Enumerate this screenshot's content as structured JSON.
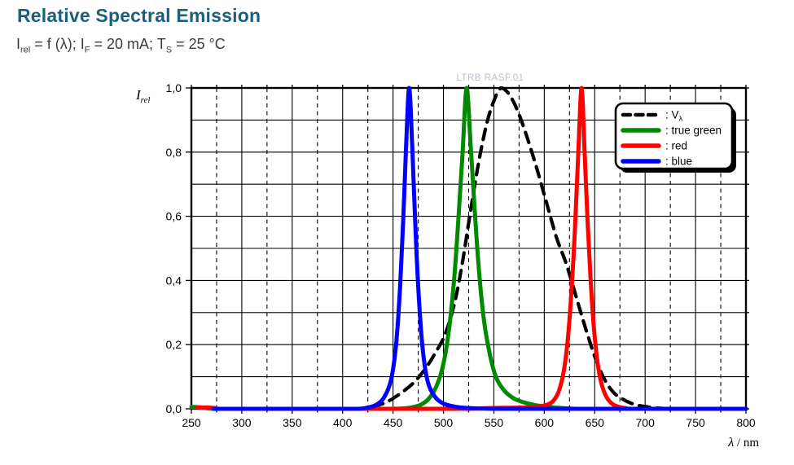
{
  "page": {
    "title": "Relative Spectral Emission",
    "title_color": "#1a5f7d",
    "subtitle_parts": {
      "p0": "I",
      "s0": "rel",
      "p1": " = f (λ); I",
      "s1": "F",
      "p2": " = 20 mA; T",
      "s2": "S",
      "p3": " = 25 °C"
    }
  },
  "watermark": "LTRB RASF.01",
  "chart_data": {
    "type": "line",
    "title": "Relative Spectral Emission",
    "condition": "Irel = f (λ); IF = 20 mA; TS = 25 °C",
    "xlabel_symbol": "λ",
    "xlabel_unit": " / nm",
    "ylabel_main": "I",
    "ylabel_sub": "rel",
    "xlim": [
      250,
      800
    ],
    "ylim": [
      0,
      1
    ],
    "grid": "on",
    "x_tick_labels": [
      "250",
      "300",
      "350",
      "400",
      "450",
      "500",
      "550",
      "600",
      "650",
      "700",
      "750",
      "800"
    ],
    "x_tick_values": [
      250,
      300,
      350,
      400,
      450,
      500,
      550,
      600,
      650,
      700,
      750,
      800
    ],
    "y_tick_labels": [
      "0,0",
      "0,2",
      "0,4",
      "0,6",
      "0,8",
      "1,0"
    ],
    "y_tick_values": [
      0,
      0.2,
      0.4,
      0.6,
      0.8,
      1.0
    ],
    "x_solid_grid": [
      300,
      350,
      400,
      450,
      500,
      550,
      600,
      650,
      700,
      750
    ],
    "x_dashed_grid": [
      275,
      325,
      375,
      425,
      475,
      525,
      575,
      625,
      675,
      725,
      775
    ],
    "y_grid": [
      0.1,
      0.2,
      0.3,
      0.4,
      0.5,
      0.6,
      0.7,
      0.8,
      0.9
    ],
    "x_minor_step": 25,
    "y_minor_step": 0.1,
    "legend": {
      "position": "top-right",
      "items": [
        {
          "label_main": ": V",
          "label_sub": "λ",
          "color": "#000000",
          "dash": "9 6.5"
        },
        {
          "label": ": true green",
          "color": "#008a00",
          "dash": "none"
        },
        {
          "label": ": red",
          "color": "#ff0000",
          "dash": "none"
        },
        {
          "label": ": blue",
          "color": "#0000ff",
          "dash": "none"
        }
      ]
    },
    "series": [
      {
        "name": "V_lambda",
        "color": "#000000",
        "style": "dashed",
        "width": 4.2,
        "points": [
          [
            430,
            0.006
          ],
          [
            443,
            0.02
          ],
          [
            456,
            0.045
          ],
          [
            470,
            0.08
          ],
          [
            482,
            0.125
          ],
          [
            493,
            0.18
          ],
          [
            502,
            0.235
          ],
          [
            511,
            0.33
          ],
          [
            519,
            0.46
          ],
          [
            527,
            0.62
          ],
          [
            535,
            0.77
          ],
          [
            543,
            0.89
          ],
          [
            550,
            0.96
          ],
          [
            557,
            1.0
          ],
          [
            564,
            0.985
          ],
          [
            572,
            0.94
          ],
          [
            581,
            0.865
          ],
          [
            592,
            0.755
          ],
          [
            602,
            0.645
          ],
          [
            612,
            0.535
          ],
          [
            622,
            0.45
          ],
          [
            632,
            0.345
          ],
          [
            642,
            0.24
          ],
          [
            651,
            0.155
          ],
          [
            660,
            0.09
          ],
          [
            669,
            0.05
          ],
          [
            679,
            0.028
          ],
          [
            690,
            0.013
          ],
          [
            702,
            0.006
          ],
          [
            714,
            0.002
          ],
          [
            726,
            0
          ]
        ]
      },
      {
        "name": "true green",
        "color": "#008a00",
        "style": "solid",
        "width": 5,
        "points": [
          [
            250,
            0.006
          ],
          [
            257,
            0.005
          ],
          [
            262,
            0.003
          ],
          [
            268,
            0.001
          ],
          [
            275,
            0
          ],
          [
            320,
            0
          ],
          [
            380,
            0
          ],
          [
            440,
            0
          ],
          [
            458,
            0.001
          ],
          [
            468,
            0.004
          ],
          [
            477,
            0.012
          ],
          [
            485,
            0.03
          ],
          [
            493,
            0.07
          ],
          [
            500,
            0.14
          ],
          [
            506,
            0.26
          ],
          [
            511,
            0.42
          ],
          [
            515,
            0.6
          ],
          [
            519,
            0.8
          ],
          [
            523,
            1.0
          ],
          [
            527,
            0.82
          ],
          [
            531,
            0.62
          ],
          [
            535,
            0.44
          ],
          [
            540,
            0.28
          ],
          [
            546,
            0.17
          ],
          [
            552,
            0.1
          ],
          [
            560,
            0.058
          ],
          [
            570,
            0.032
          ],
          [
            582,
            0.018
          ],
          [
            594,
            0.01
          ],
          [
            605,
            0.006
          ],
          [
            614,
            0.003
          ],
          [
            624,
            0.001
          ],
          [
            636,
            0
          ],
          [
            700,
            0
          ],
          [
            800,
            0
          ]
        ]
      },
      {
        "name": "red",
        "color": "#ff0000",
        "style": "solid",
        "width": 5,
        "points": [
          [
            256,
            0.004
          ],
          [
            266,
            0.004
          ],
          [
            274,
            0.002
          ],
          [
            282,
            0
          ],
          [
            350,
            0
          ],
          [
            450,
            0
          ],
          [
            520,
            0
          ],
          [
            542,
            0.002
          ],
          [
            560,
            0.003
          ],
          [
            578,
            0.004
          ],
          [
            592,
            0.006
          ],
          [
            602,
            0.012
          ],
          [
            609,
            0.025
          ],
          [
            615,
            0.06
          ],
          [
            620,
            0.13
          ],
          [
            624,
            0.24
          ],
          [
            628,
            0.42
          ],
          [
            631,
            0.6
          ],
          [
            634,
            0.82
          ],
          [
            637,
            1.0
          ],
          [
            640,
            0.8
          ],
          [
            643,
            0.58
          ],
          [
            646,
            0.4
          ],
          [
            649,
            0.26
          ],
          [
            653,
            0.14
          ],
          [
            657,
            0.075
          ],
          [
            662,
            0.035
          ],
          [
            668,
            0.014
          ],
          [
            674,
            0.006
          ],
          [
            681,
            0.002
          ],
          [
            690,
            0
          ],
          [
            740,
            0
          ],
          [
            800,
            0
          ]
        ]
      },
      {
        "name": "blue",
        "color": "#0000ff",
        "style": "solid",
        "width": 5,
        "points": [
          [
            272,
            0
          ],
          [
            300,
            0
          ],
          [
            340,
            0
          ],
          [
            380,
            0
          ],
          [
            415,
            0
          ],
          [
            425,
            0.004
          ],
          [
            433,
            0.012
          ],
          [
            441,
            0.035
          ],
          [
            448,
            0.09
          ],
          [
            453,
            0.2
          ],
          [
            457,
            0.38
          ],
          [
            460,
            0.58
          ],
          [
            463,
            0.82
          ],
          [
            466,
            1.0
          ],
          [
            469,
            0.82
          ],
          [
            472,
            0.58
          ],
          [
            475,
            0.38
          ],
          [
            479,
            0.2
          ],
          [
            484,
            0.09
          ],
          [
            491,
            0.04
          ],
          [
            499,
            0.018
          ],
          [
            509,
            0.008
          ],
          [
            521,
            0.003
          ],
          [
            535,
            0.001
          ],
          [
            560,
            0
          ],
          [
            620,
            0
          ],
          [
            700,
            0
          ],
          [
            800,
            0
          ]
        ]
      }
    ]
  }
}
